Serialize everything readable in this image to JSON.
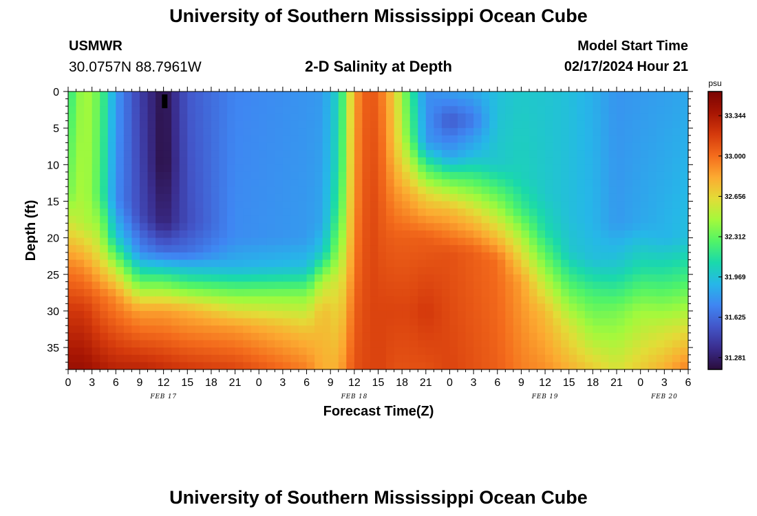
{
  "header": {
    "title": "University of Southern Mississippi Ocean Cube",
    "station_id": "USMWR",
    "station_coords": "30.0757N  88.7961W",
    "subtitle": "2-D Salinity at Depth",
    "model_start_label": "Model Start Time",
    "model_start_value": "02/17/2024 Hour 21"
  },
  "footer": {
    "title": "University of Southern Mississippi Ocean Cube"
  },
  "chart_data": {
    "type": "heatmap",
    "title": "2-D Salinity at Depth",
    "xlabel": "Forecast Time(Z)",
    "ylabel": "Depth (ft)",
    "x_tick_labels": [
      "0",
      "3",
      "6",
      "9",
      "12",
      "15",
      "18",
      "21",
      "0",
      "3",
      "6",
      "9",
      "12",
      "15",
      "18",
      "21",
      "0",
      "3",
      "6",
      "9",
      "12",
      "15",
      "18",
      "21",
      "0",
      "3",
      "6"
    ],
    "x_hours": [
      0,
      78
    ],
    "date_labels": [
      {
        "text": "FEB 17",
        "hour": 12
      },
      {
        "text": "FEB 18",
        "hour": 36
      },
      {
        "text": "FEB 19",
        "hour": 60
      },
      {
        "text": "FEB 20",
        "hour": 75
      }
    ],
    "y_ticks": [
      0,
      5,
      10,
      15,
      20,
      25,
      30,
      35
    ],
    "ylim": [
      0,
      38
    ],
    "y_inverted": true,
    "colorbar": {
      "unit": "psu",
      "ticks": [
        "33.344",
        "33.000",
        "32.656",
        "32.312",
        "31.969",
        "31.625",
        "31.281"
      ],
      "range": [
        31.18,
        33.55
      ],
      "colors": [
        "#2a0c3b",
        "#3a2d8e",
        "#4356c9",
        "#3f86f2",
        "#26b7e8",
        "#1ad9ab",
        "#52f466",
        "#a3f93c",
        "#e3dc37",
        "#fcaa31",
        "#f46c1c",
        "#d53a0c",
        "#a71503",
        "#7a0403"
      ]
    },
    "grid": false,
    "legend": "colorbar-right",
    "hovmoller_cells": [
      [
        {
          "x": 0,
          "y": 0,
          "v": 32.2
        },
        {
          "x": 0,
          "y": 19,
          "v": 32.6
        },
        {
          "x": 0,
          "y": 27,
          "v": 33.0
        },
        {
          "x": 0,
          "y": 38,
          "v": 33.4
        }
      ]
    ],
    "salinity_samples": [
      {
        "hour": 0,
        "depths": [
          0,
          14,
          19,
          24,
          30,
          38
        ],
        "values": [
          32.15,
          32.35,
          32.65,
          32.95,
          33.2,
          33.42
        ]
      },
      {
        "hour": 2,
        "depths": [
          0,
          18,
          24,
          30,
          38
        ],
        "values": [
          32.5,
          32.5,
          32.9,
          33.2,
          33.42
        ]
      },
      {
        "hour": 4,
        "depths": [
          0,
          14,
          22,
          28,
          38
        ],
        "values": [
          32.3,
          32.25,
          32.6,
          33.0,
          33.35
        ]
      },
      {
        "hour": 6,
        "depths": [
          0,
          15,
          20,
          24,
          28,
          38
        ],
        "values": [
          31.8,
          31.75,
          32.0,
          32.5,
          32.9,
          33.3
        ]
      },
      {
        "hour": 9,
        "depths": [
          0,
          17,
          22,
          26,
          30,
          38
        ],
        "values": [
          31.45,
          31.5,
          31.75,
          32.3,
          32.85,
          33.3
        ]
      },
      {
        "hour": 12,
        "depths": [
          0,
          10,
          18,
          22,
          26,
          30,
          38
        ],
        "values": [
          31.2,
          31.18,
          31.3,
          31.65,
          32.3,
          32.85,
          33.25
        ]
      },
      {
        "hour": 15,
        "depths": [
          0,
          18,
          22,
          26,
          30,
          38
        ],
        "values": [
          31.55,
          31.5,
          31.65,
          32.2,
          32.8,
          33.2
        ]
      },
      {
        "hour": 21,
        "depths": [
          0,
          20,
          24,
          28,
          32,
          38
        ],
        "values": [
          31.72,
          31.75,
          31.9,
          32.4,
          32.85,
          33.15
        ]
      },
      {
        "hour": 30,
        "depths": [
          0,
          20,
          24,
          28,
          33,
          38
        ],
        "values": [
          31.78,
          31.8,
          31.95,
          32.4,
          32.75,
          32.95
        ]
      },
      {
        "hour": 32,
        "depths": [
          0,
          18,
          22,
          26,
          30,
          38
        ],
        "values": [
          31.8,
          31.85,
          32.0,
          32.5,
          32.75,
          32.8
        ]
      },
      {
        "hour": 34,
        "depths": [
          0,
          10,
          16,
          20,
          26,
          38
        ],
        "values": [
          32.05,
          32.1,
          32.2,
          32.35,
          32.6,
          32.8
        ]
      },
      {
        "hour": 35,
        "depths": [
          0,
          10,
          20,
          30,
          38
        ],
        "values": [
          32.4,
          32.45,
          32.55,
          32.8,
          32.95
        ]
      },
      {
        "hour": 36,
        "depths": [
          0,
          15,
          30,
          38
        ],
        "values": [
          32.85,
          32.9,
          33.05,
          33.1
        ]
      },
      {
        "hour": 38,
        "depths": [
          0,
          15,
          30,
          38
        ],
        "values": [
          33.12,
          33.15,
          33.15,
          33.15
        ]
      },
      {
        "hour": 39.5,
        "depths": [
          0,
          15,
          30,
          38
        ],
        "values": [
          32.95,
          33.05,
          33.15,
          33.15
        ]
      },
      {
        "hour": 41,
        "depths": [
          0,
          8,
          12,
          20,
          30,
          38
        ],
        "values": [
          32.7,
          32.75,
          32.85,
          33.05,
          33.15,
          33.1
        ]
      },
      {
        "hour": 43,
        "depths": [
          0,
          6,
          10,
          14,
          20,
          30,
          38
        ],
        "values": [
          32.2,
          32.3,
          32.55,
          32.8,
          33.05,
          33.15,
          33.1
        ]
      },
      {
        "hour": 45,
        "depths": [
          0,
          7,
          10,
          14,
          20,
          30,
          38
        ],
        "values": [
          31.75,
          31.8,
          32.2,
          32.65,
          33.05,
          33.2,
          33.1
        ]
      },
      {
        "hour": 48,
        "depths": [
          0,
          4,
          9,
          12,
          16,
          22,
          38
        ],
        "values": [
          31.82,
          31.55,
          31.85,
          32.3,
          32.75,
          33.1,
          33.15
        ]
      },
      {
        "hour": 51,
        "depths": [
          0,
          4,
          9,
          12,
          17,
          22,
          38
        ],
        "values": [
          31.85,
          31.68,
          31.95,
          32.25,
          32.7,
          33.05,
          33.1
        ]
      },
      {
        "hour": 54,
        "depths": [
          0,
          10,
          14,
          18,
          23,
          38
        ],
        "values": [
          31.95,
          32.0,
          32.3,
          32.6,
          33.0,
          33.05
        ]
      },
      {
        "hour": 57,
        "depths": [
          0,
          12,
          16,
          20,
          26,
          38
        ],
        "values": [
          32.0,
          32.05,
          32.2,
          32.5,
          32.85,
          32.95
        ]
      },
      {
        "hour": 60,
        "depths": [
          0,
          14,
          19,
          24,
          30,
          38
        ],
        "values": [
          31.98,
          32.0,
          32.1,
          32.4,
          32.75,
          32.9
        ]
      },
      {
        "hour": 63,
        "depths": [
          0,
          17,
          22,
          27,
          32,
          38
        ],
        "values": [
          31.95,
          31.95,
          32.0,
          32.3,
          32.6,
          32.8
        ]
      },
      {
        "hour": 66,
        "depths": [
          0,
          18,
          23,
          28,
          34,
          38
        ],
        "values": [
          31.88,
          31.9,
          31.95,
          32.25,
          32.5,
          32.7
        ]
      },
      {
        "hour": 69,
        "depths": [
          0,
          18,
          24,
          30,
          38
        ],
        "values": [
          31.78,
          31.8,
          32.0,
          32.35,
          32.6
        ]
      },
      {
        "hour": 72,
        "depths": [
          0,
          18,
          24,
          30,
          38
        ],
        "values": [
          31.8,
          31.85,
          32.1,
          32.45,
          32.7
        ]
      },
      {
        "hour": 75,
        "depths": [
          0,
          20,
          26,
          32,
          38
        ],
        "values": [
          31.82,
          31.9,
          32.2,
          32.55,
          32.8
        ]
      },
      {
        "hour": 78,
        "depths": [
          0,
          20,
          26,
          32,
          38
        ],
        "values": [
          31.85,
          31.95,
          32.25,
          32.6,
          32.95
        ]
      }
    ]
  }
}
